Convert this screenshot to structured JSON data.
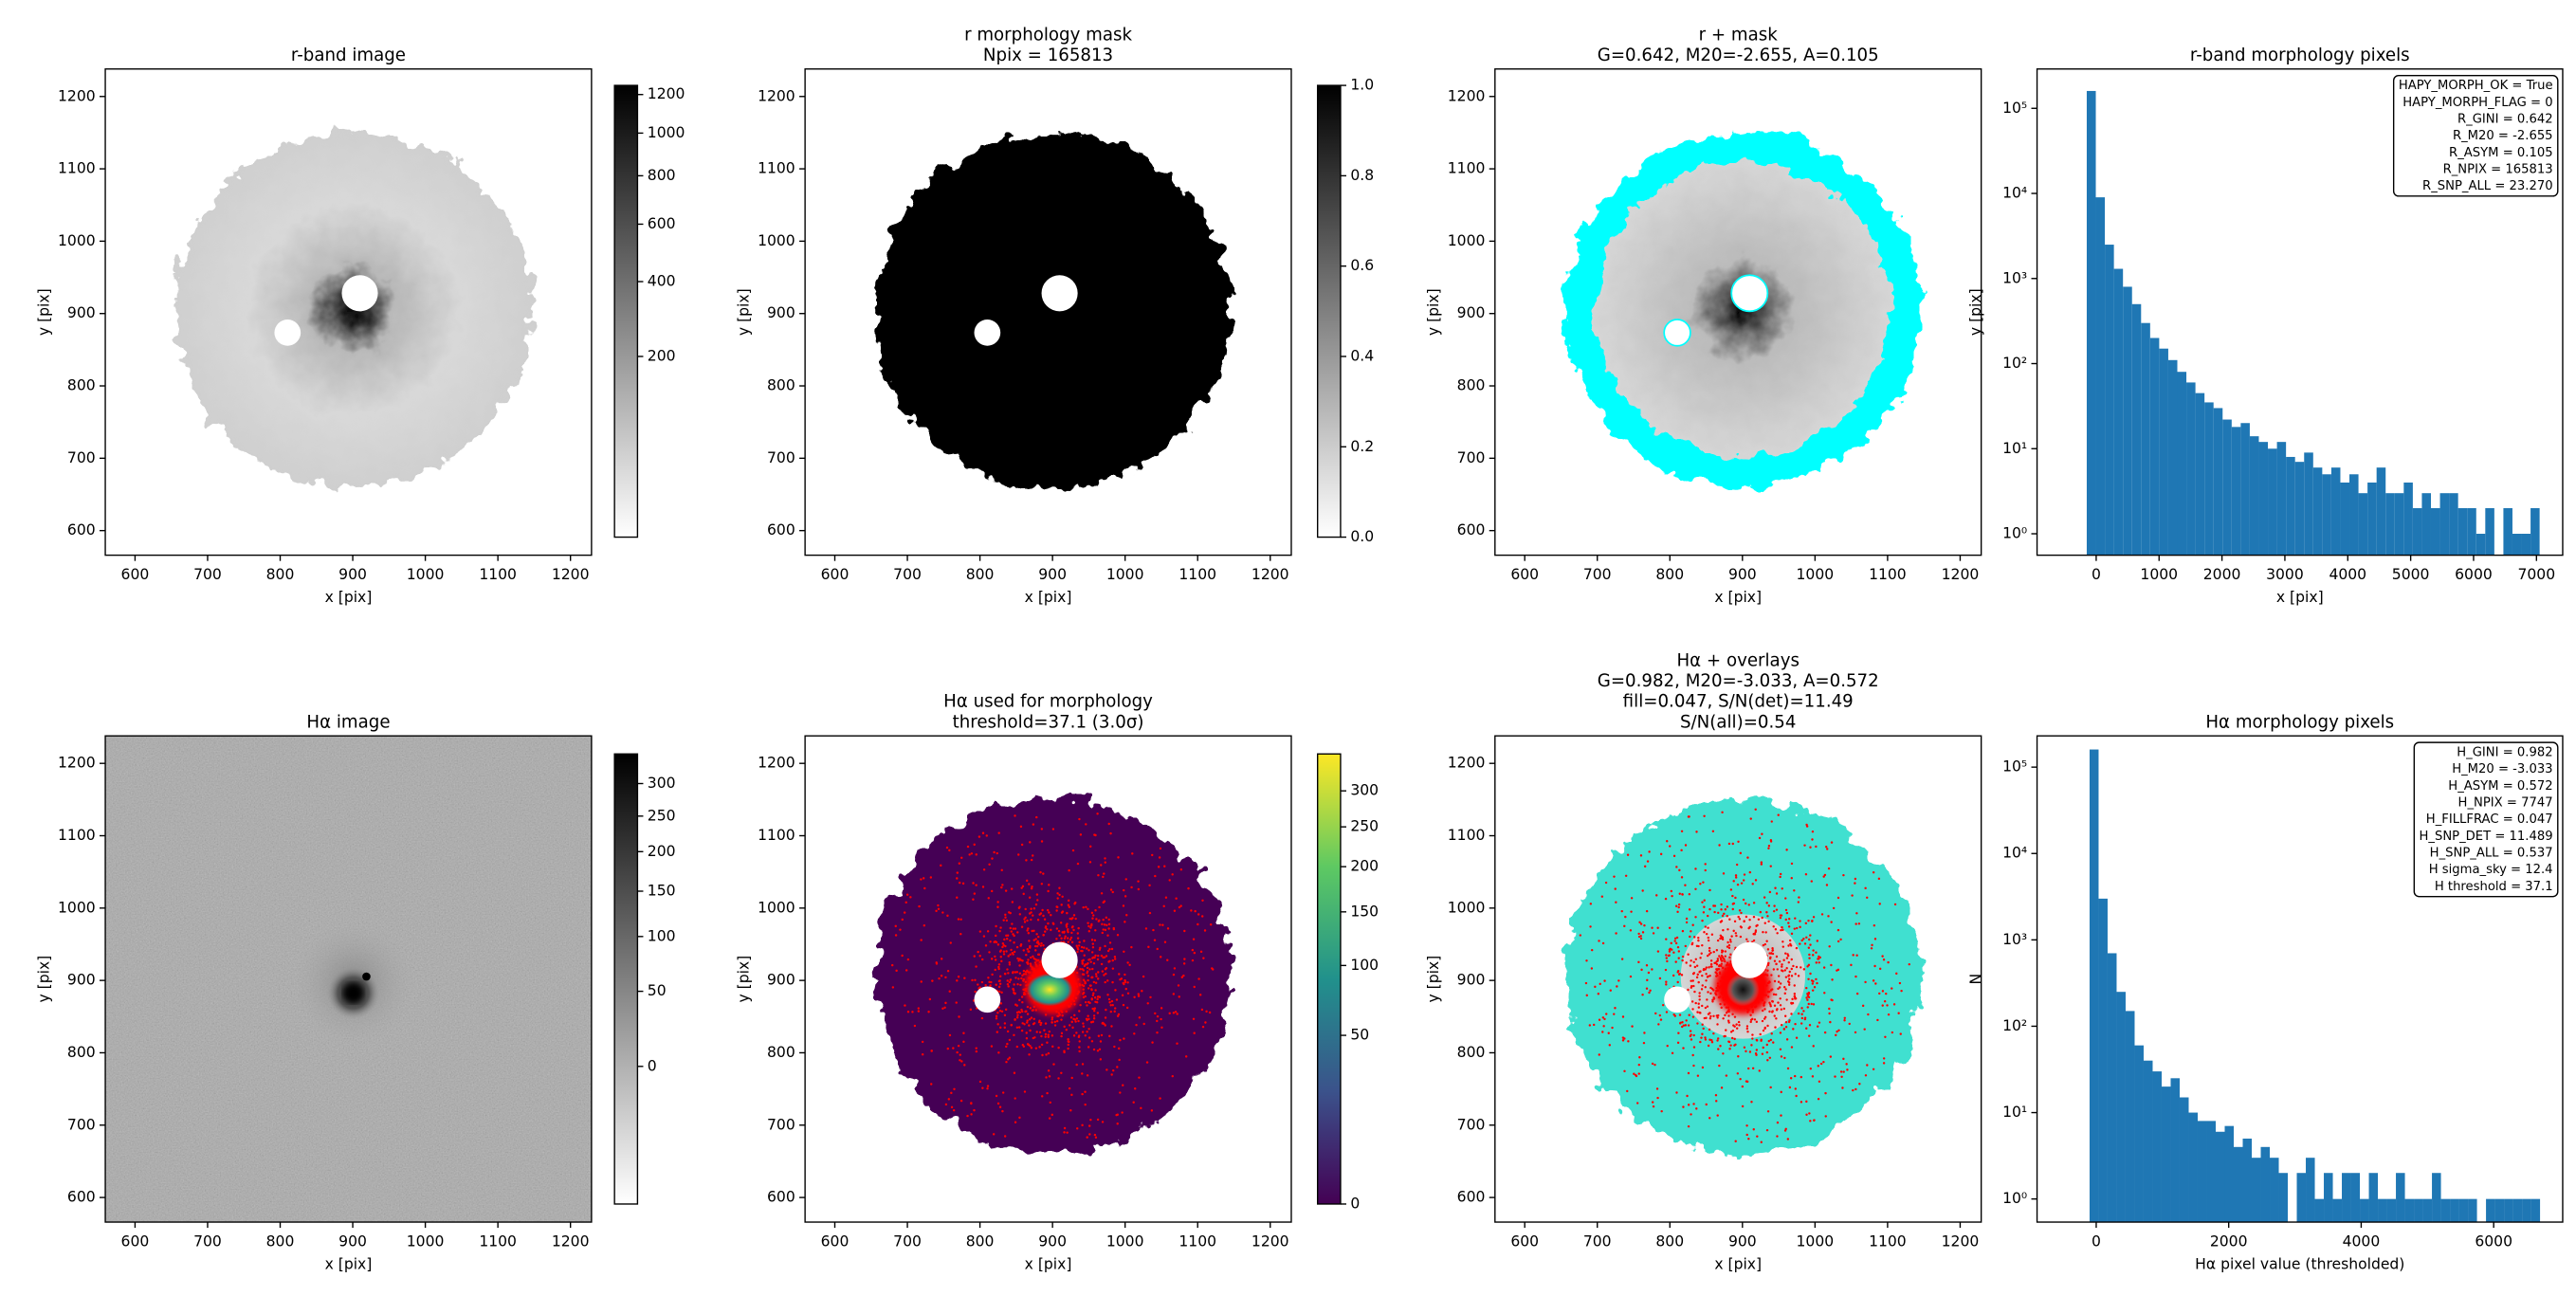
{
  "chart_data": [
    {
      "type": "image",
      "title": [
        "r-band image"
      ],
      "xlabel": "x [pix]",
      "ylabel": "y [pix]",
      "xlim": [
        559,
        1229
      ],
      "ylim": [
        566,
        1238
      ],
      "xticks": [
        600,
        700,
        800,
        900,
        1000,
        1100,
        1200
      ],
      "yticks": [
        600,
        700,
        800,
        900,
        1000,
        1100,
        1200
      ],
      "colorbar": {
        "clim": [
          0,
          1250
        ],
        "scale": "sqrt",
        "colors": [
          "#ffffff",
          "#000000"
        ],
        "ticks": [
          200,
          400,
          600,
          800,
          1000,
          1200
        ]
      }
    },
    {
      "type": "image",
      "title": [
        "r morphology mask",
        "Npix = 165813"
      ],
      "xlabel": "x [pix]",
      "ylabel": "y [pix]",
      "xlim": [
        559,
        1229
      ],
      "ylim": [
        566,
        1238
      ],
      "xticks": [
        600,
        700,
        800,
        900,
        1000,
        1100,
        1200
      ],
      "yticks": [
        600,
        700,
        800,
        900,
        1000,
        1100,
        1200
      ],
      "colorbar": {
        "clim": [
          0,
          1
        ],
        "scale": "linear",
        "colors": [
          "#ffffff",
          "#000000"
        ],
        "ticks": [
          {
            "value": 0,
            "label": "0.0"
          },
          0.2,
          0.4,
          0.6,
          0.8,
          {
            "value": 1,
            "label": "1.0"
          }
        ]
      }
    },
    {
      "type": "image",
      "title": [
        "r + mask",
        "G=0.642, M20=-2.655, A=0.105"
      ],
      "xlabel": "x [pix]",
      "ylabel": "y [pix]",
      "xlim": [
        559,
        1229
      ],
      "ylim": [
        566,
        1238
      ],
      "xticks": [
        600,
        700,
        800,
        900,
        1000,
        1100,
        1200
      ],
      "yticks": [
        600,
        700,
        800,
        900,
        1000,
        1100,
        1200
      ]
    },
    {
      "type": "histogram",
      "title": [
        "r-band morphology pixels"
      ],
      "xlabel": "x [pix]",
      "ylabel": "y [pix]",
      "color": "#1f77b4",
      "log_y": true,
      "bins": [
        -150,
        -6,
        138,
        282,
        426,
        570,
        714,
        858,
        1002,
        1146,
        1290,
        1434,
        1578,
        1722,
        1866,
        2010,
        2154,
        2298,
        2442,
        2586,
        2730,
        2874,
        3018,
        3162,
        3306,
        3450,
        3594,
        3738,
        3882,
        4026,
        4170,
        4314,
        4458,
        4602,
        4746,
        4890,
        5034,
        5178,
        5322,
        5466,
        5610,
        5754,
        5898,
        6042,
        6186,
        6330,
        6474,
        6618,
        6762,
        6906,
        7050
      ],
      "values": [
        160000,
        9000,
        2500,
        1300,
        800,
        500,
        300,
        200,
        150,
        110,
        80,
        60,
        45,
        35,
        30,
        22,
        18,
        20,
        14,
        12,
        10,
        12,
        8,
        7,
        9,
        6,
        5,
        6,
        4,
        5,
        3,
        4,
        6,
        3,
        3,
        4,
        2,
        3,
        2,
        3,
        3,
        2,
        2,
        1,
        2,
        0,
        2,
        1,
        1,
        2
      ],
      "xlim": [
        -940,
        7417
      ],
      "ylim": [
        0.56,
        290000
      ],
      "xticks": [
        0,
        1000,
        2000,
        3000,
        4000,
        5000,
        6000,
        7000
      ],
      "yticks": [
        {
          "value": 1,
          "label": "10⁰"
        },
        {
          "value": 10,
          "label": "10¹"
        },
        {
          "value": 100,
          "label": "10²"
        },
        {
          "value": 1000,
          "label": "10³"
        },
        {
          "value": 10000,
          "label": "10⁴"
        },
        {
          "value": 100000,
          "label": "10⁵"
        }
      ],
      "annotation": [
        "HAPY_MORPH_OK = True",
        "HAPY_MORPH_FLAG = 0",
        "R_GINI = 0.642",
        "R_M20 = -2.655",
        "R_ASYM = 0.105",
        "R_NPIX = 165813",
        "R_SNP_ALL = 23.270"
      ],
      "annotation_loc": "upper right"
    },
    {
      "type": "image",
      "title": [
        "Hα image"
      ],
      "xlabel": "x [pix]",
      "ylabel": "y [pix]",
      "xlim": [
        559,
        1229
      ],
      "ylim": [
        566,
        1238
      ],
      "xticks": [
        600,
        700,
        800,
        900,
        1000,
        1100,
        1200
      ],
      "yticks": [
        600,
        700,
        800,
        900,
        1000,
        1100,
        1200
      ],
      "colorbar": {
        "clim": [
          -36,
          349
        ],
        "scale": "sqrt",
        "colors": [
          "#ffffff",
          "#000000"
        ],
        "ticks": [
          0,
          50,
          100,
          150,
          200,
          250,
          300
        ]
      }
    },
    {
      "type": "image",
      "title": [
        "Hα used for morphology",
        "threshold=37.1 (3.0σ)"
      ],
      "xlabel": "x [pix]",
      "ylabel": "y [pix]",
      "xlim": [
        559,
        1229
      ],
      "ylim": [
        566,
        1238
      ],
      "xticks": [
        600,
        700,
        800,
        900,
        1000,
        1100,
        1200
      ],
      "yticks": [
        600,
        700,
        800,
        900,
        1000,
        1100,
        1200
      ],
      "colorbar": {
        "clim": [
          0,
          356
        ],
        "scale": "sqrt",
        "colors": [
          "#440154",
          "#3b528b",
          "#21918c",
          "#5ec962",
          "#fde725"
        ],
        "ticks": [
          0,
          50,
          100,
          150,
          200,
          250,
          300
        ]
      }
    },
    {
      "type": "image",
      "title": [
        "Hα + overlays",
        "G=0.982, M20=-3.033, A=0.572",
        "fill=0.047, S/N(det)=11.49",
        "S/N(all)=0.54"
      ],
      "xlabel": "x [pix]",
      "ylabel": "y [pix]",
      "xlim": [
        559,
        1229
      ],
      "ylim": [
        566,
        1238
      ],
      "xticks": [
        600,
        700,
        800,
        900,
        1000,
        1100,
        1200
      ],
      "yticks": [
        600,
        700,
        800,
        900,
        1000,
        1100,
        1200
      ]
    },
    {
      "type": "histogram",
      "title": [
        "Hα morphology pixels"
      ],
      "xlabel": "Hα pixel value (thresholded)",
      "ylabel": "N",
      "color": "#1f77b4",
      "log_y": true,
      "bins": [
        -100,
        36,
        172,
        308,
        444,
        580,
        716,
        852,
        988,
        1124,
        1260,
        1396,
        1532,
        1668,
        1804,
        1940,
        2076,
        2212,
        2348,
        2484,
        2620,
        2756,
        2892,
        3028,
        3164,
        3300,
        3436,
        3572,
        3708,
        3844,
        3980,
        4116,
        4252,
        4388,
        4524,
        4660,
        4796,
        4932,
        5068,
        5204,
        5340,
        5476,
        5612,
        5748,
        5884,
        6020,
        6156,
        6292,
        6428,
        6564,
        6700
      ],
      "values": [
        160000,
        3000,
        700,
        250,
        150,
        60,
        40,
        30,
        20,
        25,
        15,
        10,
        8,
        8,
        6,
        7,
        4,
        5,
        3,
        4,
        3,
        2,
        0,
        2,
        3,
        1,
        2,
        1,
        2,
        2,
        1,
        2,
        1,
        1,
        2,
        1,
        1,
        1,
        2,
        1,
        1,
        1,
        1,
        0,
        1,
        1,
        1,
        1,
        1,
        1
      ],
      "xlim": [
        -893,
        7042
      ],
      "ylim": [
        0.54,
        230000
      ],
      "xticks": [
        0,
        2000,
        4000,
        6000
      ],
      "yticks": [
        {
          "value": 1,
          "label": "10⁰"
        },
        {
          "value": 10,
          "label": "10¹"
        },
        {
          "value": 100,
          "label": "10²"
        },
        {
          "value": 1000,
          "label": "10³"
        },
        {
          "value": 10000,
          "label": "10⁴"
        },
        {
          "value": 100000,
          "label": "10⁵"
        }
      ],
      "annotation": [
        "H_GINI = 0.982",
        "H_M20 = -3.033",
        "H_ASYM = 0.572",
        "H_NPIX = 7747",
        "H_FILLFRAC = 0.047",
        "H_SNP_DET = 11.489",
        "H_SNP_ALL = 0.537",
        "H sigma_sky = 12.4",
        "H threshold = 37.1"
      ],
      "annotation_loc": "upper right"
    }
  ]
}
